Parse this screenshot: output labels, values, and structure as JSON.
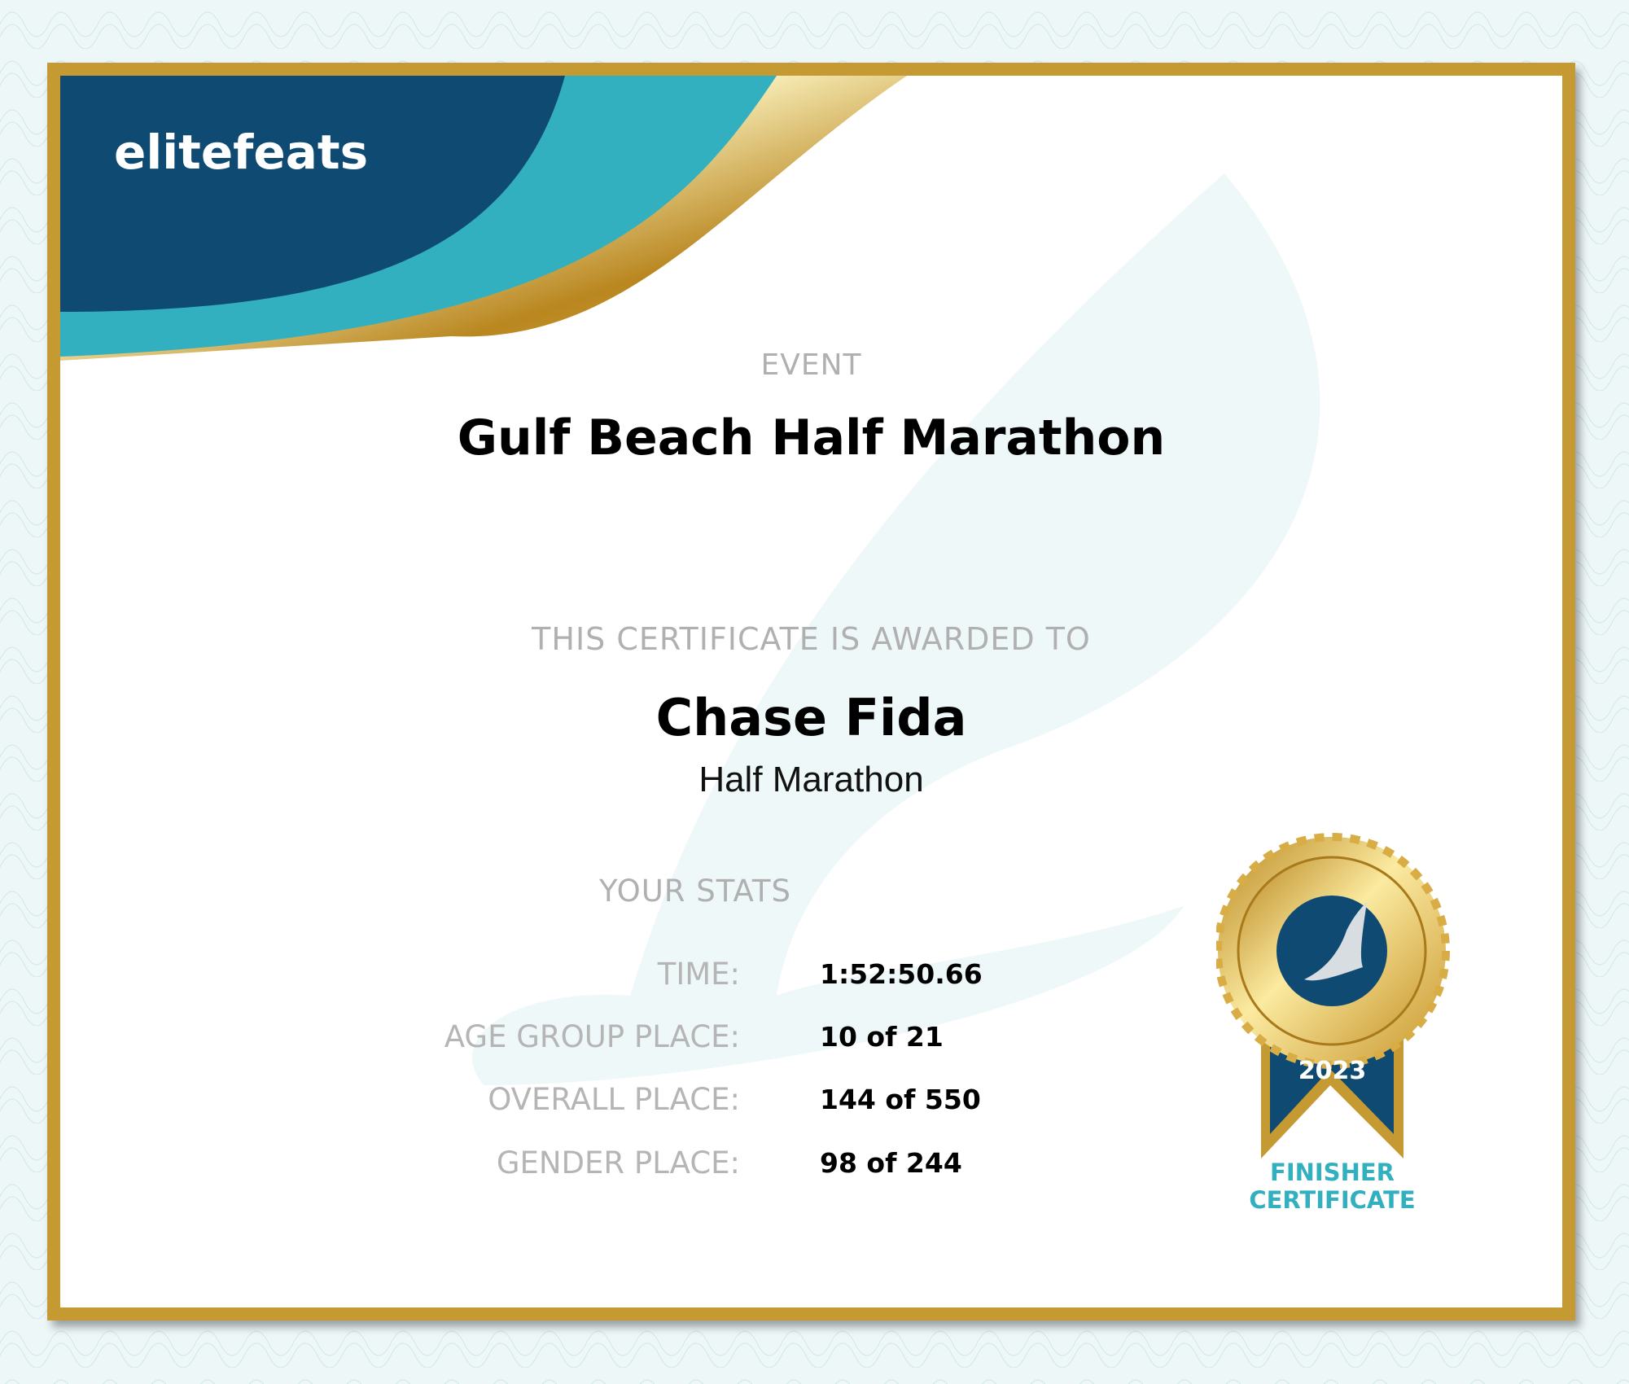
{
  "brand": {
    "logo_text": "elitefeats",
    "colors": {
      "navy": "#0f4a72",
      "teal": "#33b0bf",
      "gold": "#c59a33"
    }
  },
  "event": {
    "label": "EVENT",
    "name": "Gulf Beach Half Marathon"
  },
  "award": {
    "label": "THIS CERTIFICATE IS AWARDED TO",
    "recipient": "Chase Fida",
    "race": "Half Marathon"
  },
  "stats": {
    "heading": "YOUR STATS",
    "rows": [
      {
        "label": "TIME:",
        "value": "1:52:50.66"
      },
      {
        "label": "AGE GROUP PLACE:",
        "value": "10 of 21"
      },
      {
        "label": "OVERALL PLACE:",
        "value": "144 of 550"
      },
      {
        "label": "GENDER PLACE:",
        "value": "98 of 244"
      }
    ]
  },
  "badge": {
    "year": "2023",
    "line1": "FINISHER",
    "line2": "CERTIFICATE",
    "icon": "winged-foot-icon"
  }
}
